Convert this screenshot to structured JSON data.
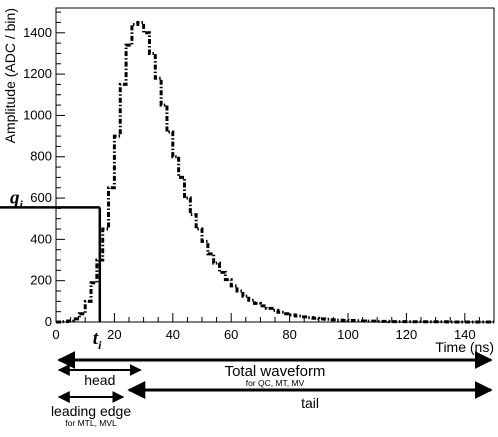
{
  "chart_data": {
    "type": "line",
    "title": "",
    "xlabel": "Time (ns)",
    "ylabel": "Amplitude (ADC / bin)",
    "xlim": [
      0,
      150
    ],
    "ylim": [
      0,
      1520
    ],
    "x_ticks": [
      0,
      20,
      40,
      60,
      80,
      100,
      120,
      140
    ],
    "y_ticks": [
      0,
      200,
      400,
      600,
      800,
      1000,
      1200,
      1400
    ],
    "grid": false,
    "legend": "none",
    "series": [
      {
        "style": "dash-dot-step",
        "x": [
          0,
          2,
          4,
          6,
          8,
          10,
          12,
          14,
          16,
          18,
          20,
          22,
          24,
          26,
          28,
          30,
          32,
          34,
          36,
          38,
          40,
          42,
          44,
          46,
          48,
          50,
          52,
          54,
          56,
          58,
          60,
          62,
          64,
          66,
          68,
          70,
          72,
          74,
          76,
          78,
          80,
          82,
          84,
          86,
          88,
          90,
          92,
          94,
          96,
          98,
          100,
          102,
          104,
          106,
          108,
          110,
          112,
          114,
          116,
          118,
          120,
          122,
          124,
          126,
          128,
          130,
          132,
          134,
          136,
          138,
          140,
          142,
          144,
          146,
          148
        ],
        "y": [
          0,
          2,
          5,
          15,
          40,
          100,
          190,
          300,
          450,
          650,
          900,
          1150,
          1340,
          1440,
          1450,
          1400,
          1300,
          1180,
          1050,
          920,
          800,
          700,
          600,
          520,
          450,
          390,
          330,
          285,
          240,
          205,
          175,
          150,
          125,
          105,
          90,
          78,
          66,
          56,
          47,
          40,
          34,
          29,
          25,
          21,
          18,
          15,
          13,
          11,
          9,
          8,
          7,
          6,
          5,
          4,
          4,
          3,
          3,
          2,
          2,
          2,
          2,
          1,
          1,
          1,
          1,
          1,
          1,
          0,
          0,
          0,
          0,
          0,
          0,
          0,
          0
        ]
      }
    ],
    "annotations": {
      "q_label": "q",
      "q_sub": "i",
      "q_value": 555,
      "t_label": "t",
      "t_sub": "i",
      "t_value": 15
    },
    "ranges": [
      {
        "label": "Total waveform",
        "sublabel": "for QC, MT, MV",
        "x_start": 0,
        "x_end": 150
      },
      {
        "label": "head",
        "sublabel": "",
        "x_start": 0,
        "x_end": 30
      },
      {
        "label": "tail",
        "sublabel": "",
        "x_start": 24,
        "x_end": 150
      },
      {
        "label": "leading edge",
        "sublabel": "for MTL, MVL",
        "x_start": 0,
        "x_end": 24
      }
    ]
  }
}
